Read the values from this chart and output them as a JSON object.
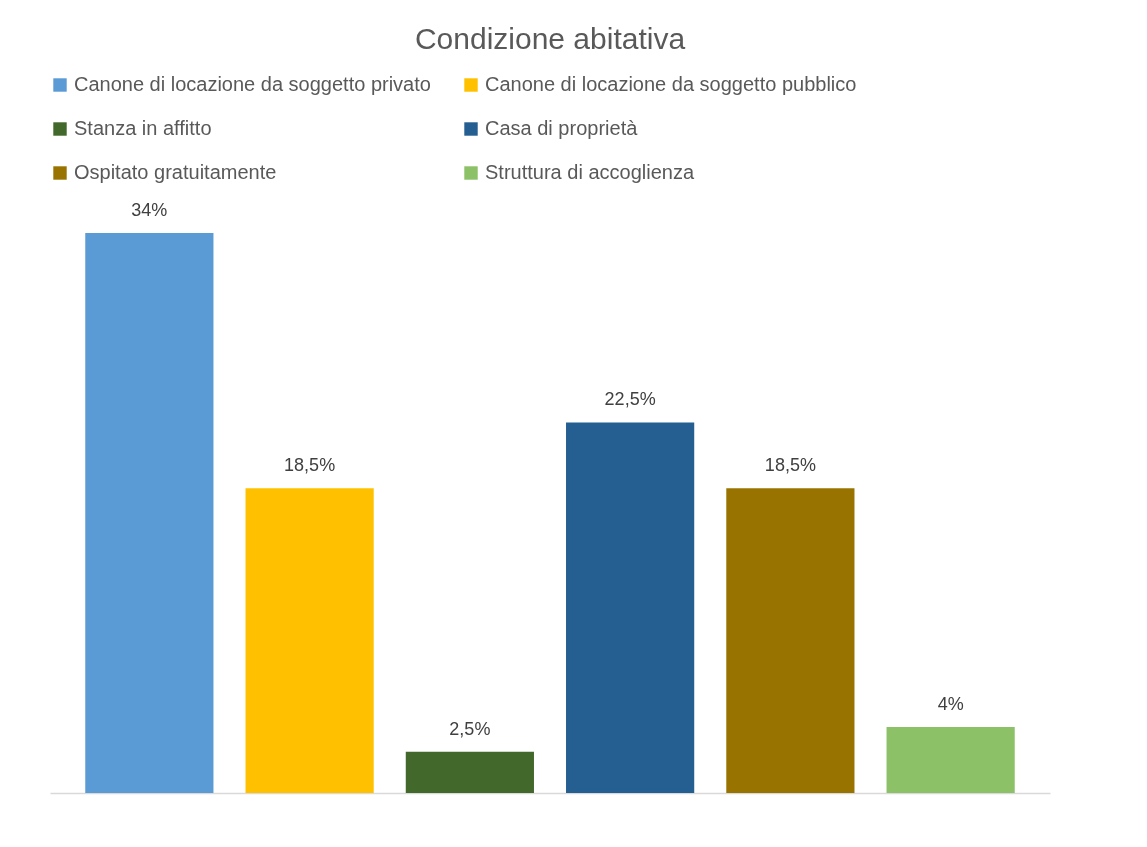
{
  "chart_data": {
    "type": "bar",
    "title": "Condizione abitativa",
    "categories": [
      null
    ],
    "series": [
      {
        "name": "Canone di locazione da soggetto privato",
        "color": "#5b9bd5",
        "values": [
          34
        ],
        "value_labels": [
          "34%"
        ]
      },
      {
        "name": "Canone di locazione da soggetto pubblico",
        "color": "#ffc000",
        "values": [
          18.5
        ],
        "value_labels": [
          "18,5%"
        ]
      },
      {
        "name": "Stanza in affitto",
        "color": "#43682b",
        "values": [
          2.5
        ],
        "value_labels": [
          "2,5%"
        ]
      },
      {
        "name": "Casa di proprietà",
        "color": "#255e91",
        "values": [
          22.5
        ],
        "value_labels": [
          "22,5%"
        ]
      },
      {
        "name": "Ospitato gratuitamente",
        "color": "#997300",
        "values": [
          18.5
        ],
        "value_labels": [
          "18,5%"
        ]
      },
      {
        "name": "Struttura di accoglienza",
        "color": "#8cc168",
        "values": [
          4
        ],
        "value_labels": [
          "4%"
        ]
      }
    ],
    "legend": "top"
  }
}
